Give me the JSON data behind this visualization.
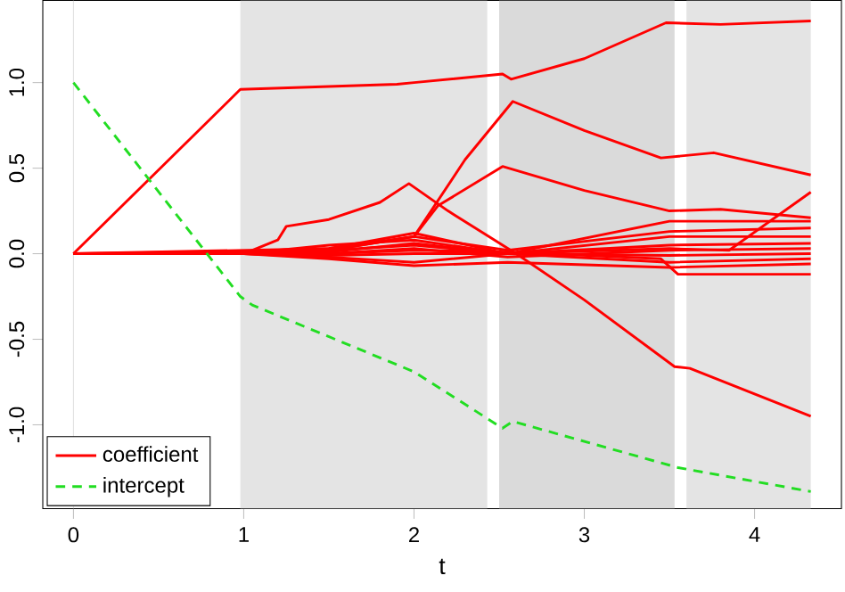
{
  "chart_data": {
    "type": "line",
    "xlabel": "t",
    "xlim": [
      -0.18,
      4.51
    ],
    "ylim": [
      -1.49,
      1.48
    ],
    "xticks": [
      0,
      1,
      2,
      3,
      4
    ],
    "yticks": [
      {
        "value": -1,
        "label": "-1.0"
      },
      {
        "value": -0.5,
        "label": "-0.5"
      },
      {
        "value": 0,
        "label": "0.0"
      },
      {
        "value": 0.5,
        "label": "0.5"
      },
      {
        "value": 1,
        "label": "1.0"
      }
    ],
    "legend": "bottom left",
    "grid": false,
    "ref_lines": [
      {
        "axis": "x",
        "value": 0,
        "color": "#e0e0e0"
      }
    ],
    "bands": [
      {
        "axis": "x",
        "from": 0.98,
        "to": 2.43,
        "color": "#e4e4e4"
      },
      {
        "axis": "x",
        "from": 2.5,
        "to": 3.53,
        "color": "#dadada"
      },
      {
        "axis": "x",
        "from": 3.6,
        "to": 4.33,
        "color": "#e4e4e4"
      }
    ],
    "series": [
      {
        "name": "coefficient",
        "color": "#ff0000",
        "line_style": "solid",
        "x": [
          0,
          0.98,
          1.9,
          2.0,
          2.52,
          2.57,
          3.0,
          3.48,
          3.8,
          4.33
        ],
        "values": [
          0,
          0.96,
          0.99,
          1.0,
          1.05,
          1.02,
          1.14,
          1.35,
          1.34,
          1.36
        ]
      },
      {
        "color": "#ff0000",
        "line_style": "solid",
        "x": [
          0,
          1.5,
          2.0,
          2.3,
          2.58,
          3.0,
          3.45,
          3.76,
          4.33
        ],
        "values": [
          0,
          0.02,
          0.1,
          0.55,
          0.89,
          0.72,
          0.56,
          0.59,
          0.46
        ]
      },
      {
        "color": "#ff0000",
        "line_style": "solid",
        "x": [
          0,
          1.5,
          2.0,
          2.14,
          2.52,
          3.0,
          3.5,
          3.8,
          4.33
        ],
        "values": [
          0,
          0.03,
          0.1,
          0.28,
          0.51,
          0.37,
          0.25,
          0.26,
          0.21
        ]
      },
      {
        "color": "#ff0000",
        "line_style": "solid",
        "x": [
          0,
          1.0,
          1.2,
          1.25,
          1.5,
          1.8,
          1.97,
          2.2,
          2.6,
          3.0,
          3.53,
          3.62,
          4.33
        ],
        "values": [
          0,
          0,
          0.08,
          0.16,
          0.2,
          0.3,
          0.41,
          0.25,
          0.0,
          -0.27,
          -0.66,
          -0.67,
          -0.95
        ]
      },
      {
        "color": "#ff0000",
        "line_style": "solid",
        "x": [
          0,
          1.0,
          1.5,
          2.0,
          2.55,
          3.5,
          3.85,
          4.33
        ],
        "values": [
          0,
          0,
          0.02,
          0.05,
          0.0,
          0.03,
          0.02,
          0.36
        ]
      },
      {
        "color": "#ff0000",
        "line_style": "solid",
        "x": [
          0,
          1.0,
          1.5,
          2.0,
          2.55,
          3.5,
          4.33
        ],
        "values": [
          0,
          0,
          0.03,
          0.12,
          0.0,
          0.19,
          0.19
        ]
      },
      {
        "color": "#ff0000",
        "line_style": "solid",
        "x": [
          0,
          1.0,
          1.5,
          2.0,
          2.55,
          3.5,
          4.33
        ],
        "values": [
          0,
          0,
          0.02,
          0.1,
          0.02,
          0.13,
          0.15
        ]
      },
      {
        "color": "#ff0000",
        "line_style": "solid",
        "x": [
          0,
          1.0,
          1.5,
          2.0,
          2.55,
          3.5,
          4.33
        ],
        "values": [
          0,
          0,
          0.05,
          0.08,
          0.0,
          0.1,
          0.1
        ]
      },
      {
        "color": "#ff0000",
        "line_style": "solid",
        "x": [
          0,
          1.0,
          1.5,
          2.0,
          2.55,
          3.5,
          4.33
        ],
        "values": [
          0,
          0,
          0.01,
          0.06,
          0.0,
          0.05,
          0.06
        ]
      },
      {
        "color": "#ff0000",
        "line_style": "solid",
        "x": [
          0,
          1.0,
          1.5,
          2.0,
          2.55,
          3.5,
          4.33
        ],
        "values": [
          0,
          0,
          0.0,
          0.03,
          -0.02,
          0.02,
          0.03
        ]
      },
      {
        "color": "#ff0000",
        "line_style": "solid",
        "x": [
          0,
          1.0,
          1.5,
          2.0,
          2.55,
          3.5,
          4.33
        ],
        "values": [
          0,
          0,
          -0.01,
          0.0,
          0.0,
          -0.01,
          0.0
        ]
      },
      {
        "color": "#ff0000",
        "line_style": "solid",
        "x": [
          0,
          1.0,
          1.5,
          2.0,
          2.55,
          3.5,
          4.33
        ],
        "values": [
          0,
          0,
          -0.02,
          -0.05,
          0.0,
          -0.05,
          -0.03
        ]
      },
      {
        "color": "#ff0000",
        "line_style": "solid",
        "x": [
          0,
          1.0,
          1.5,
          2.0,
          2.55,
          3.5,
          4.33
        ],
        "values": [
          0,
          0,
          -0.03,
          -0.07,
          -0.05,
          -0.08,
          -0.06
        ]
      },
      {
        "color": "#ff0000",
        "line_style": "solid",
        "x": [
          0,
          1.0,
          1.5,
          2.0,
          2.55,
          3.45,
          3.55,
          4.33
        ],
        "values": [
          0,
          0,
          0.0,
          0.02,
          0.01,
          -0.03,
          -0.12,
          -0.12
        ]
      },
      {
        "name": "intercept",
        "color": "#22dd22",
        "line_style": "dashed",
        "x": [
          0,
          0.98,
          1.05,
          2.0,
          2.52,
          2.58,
          3.55,
          4.33
        ],
        "values": [
          1.0,
          -0.25,
          -0.3,
          -0.69,
          -1.02,
          -0.98,
          -1.25,
          -1.39
        ]
      }
    ]
  }
}
